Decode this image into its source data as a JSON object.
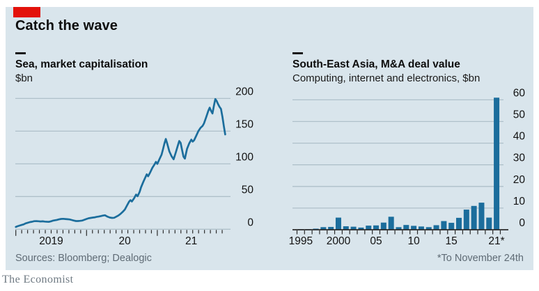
{
  "header": {
    "title": "Catch the wave"
  },
  "footer": {
    "sources": "Sources: Bloomberg; Dealogic",
    "footnote": "*To November 24th",
    "brand": "The Economist"
  },
  "colors": {
    "accent_red": "#E3120B",
    "series_blue": "#1B6D9C",
    "panel_bg": "#D9E5EC",
    "grid": "#AFC0CA",
    "axis_dark": "#2B2B2B",
    "text_dark": "#0D0D0D",
    "text_gray": "#5F6B75"
  },
  "chart_data": [
    {
      "id": "sea-market-cap",
      "type": "line",
      "title": "Sea, market capitalisation",
      "unit_label": "$bn",
      "legend": "single-series dash key",
      "grid": "on",
      "legend_position": "none",
      "ylim": [
        0,
        210
      ],
      "y_ticks": [
        0,
        50,
        100,
        150,
        200
      ],
      "x_axis_labels": [
        {
          "label": "2019",
          "t": 2019.5
        },
        {
          "label": "20",
          "t": 2020.54
        },
        {
          "label": "21",
          "t": 2021.48
        }
      ],
      "x_range_years": [
        2019.0,
        2021.96
      ],
      "points": [
        [
          2019.0,
          3.5
        ],
        [
          2019.02,
          4.5
        ],
        [
          2019.05,
          5.5
        ],
        [
          2019.08,
          6.5
        ],
        [
          2019.11,
          7.5
        ],
        [
          2019.14,
          9
        ],
        [
          2019.17,
          10
        ],
        [
          2019.2,
          11
        ],
        [
          2019.23,
          11.5
        ],
        [
          2019.26,
          12.3
        ],
        [
          2019.29,
          12.5
        ],
        [
          2019.32,
          12.2
        ],
        [
          2019.35,
          11.9
        ],
        [
          2019.38,
          12.1
        ],
        [
          2019.41,
          11.7
        ],
        [
          2019.44,
          11.5
        ],
        [
          2019.47,
          11.4
        ],
        [
          2019.5,
          12.2
        ],
        [
          2019.52,
          13
        ],
        [
          2019.55,
          13.7
        ],
        [
          2019.58,
          14.3
        ],
        [
          2019.61,
          15.1
        ],
        [
          2019.64,
          15.7
        ],
        [
          2019.67,
          16
        ],
        [
          2019.7,
          15.6
        ],
        [
          2019.73,
          15.3
        ],
        [
          2019.76,
          15
        ],
        [
          2019.79,
          14.2
        ],
        [
          2019.82,
          13.3
        ],
        [
          2019.85,
          12.6
        ],
        [
          2019.88,
          12.6
        ],
        [
          2019.91,
          12.9
        ],
        [
          2019.94,
          13.3
        ],
        [
          2019.97,
          14.6
        ],
        [
          2020.0,
          15.8
        ],
        [
          2020.03,
          16.8
        ],
        [
          2020.06,
          17.4
        ],
        [
          2020.09,
          17.9
        ],
        [
          2020.12,
          18.3
        ],
        [
          2020.14,
          18.8
        ],
        [
          2020.17,
          19.4
        ],
        [
          2020.2,
          20.1
        ],
        [
          2020.23,
          20.9
        ],
        [
          2020.26,
          21.4
        ],
        [
          2020.28,
          20.2
        ],
        [
          2020.3,
          19
        ],
        [
          2020.33,
          17.9
        ],
        [
          2020.36,
          17.3
        ],
        [
          2020.39,
          17.6
        ],
        [
          2020.42,
          19.3
        ],
        [
          2020.45,
          21
        ],
        [
          2020.48,
          23.5
        ],
        [
          2020.51,
          26.5
        ],
        [
          2020.54,
          30
        ],
        [
          2020.57,
          36
        ],
        [
          2020.6,
          42
        ],
        [
          2020.62,
          44.5
        ],
        [
          2020.64,
          42.5
        ],
        [
          2020.67,
          47
        ],
        [
          2020.7,
          53
        ],
        [
          2020.72,
          50.5
        ],
        [
          2020.75,
          57
        ],
        [
          2020.77,
          64
        ],
        [
          2020.8,
          72
        ],
        [
          2020.83,
          79
        ],
        [
          2020.85,
          84
        ],
        [
          2020.87,
          81
        ],
        [
          2020.9,
          87
        ],
        [
          2020.93,
          94
        ],
        [
          2020.96,
          99
        ],
        [
          2020.98,
          103
        ],
        [
          2021.0,
          100
        ],
        [
          2021.03,
          107
        ],
        [
          2021.06,
          114
        ],
        [
          2021.08,
          122
        ],
        [
          2021.1,
          131
        ],
        [
          2021.12,
          138
        ],
        [
          2021.14,
          131
        ],
        [
          2021.17,
          119
        ],
        [
          2021.2,
          112
        ],
        [
          2021.23,
          107
        ],
        [
          2021.26,
          117
        ],
        [
          2021.29,
          128
        ],
        [
          2021.31,
          135
        ],
        [
          2021.33,
          132
        ],
        [
          2021.35,
          121
        ],
        [
          2021.37,
          111
        ],
        [
          2021.39,
          108
        ],
        [
          2021.42,
          123
        ],
        [
          2021.45,
          131
        ],
        [
          2021.48,
          137
        ],
        [
          2021.5,
          134
        ],
        [
          2021.52,
          136
        ],
        [
          2021.55,
          143
        ],
        [
          2021.58,
          150
        ],
        [
          2021.61,
          155
        ],
        [
          2021.64,
          158
        ],
        [
          2021.66,
          162
        ],
        [
          2021.69,
          171
        ],
        [
          2021.72,
          181
        ],
        [
          2021.74,
          186
        ],
        [
          2021.76,
          181
        ],
        [
          2021.78,
          177
        ],
        [
          2021.8,
          189
        ],
        [
          2021.82,
          199
        ],
        [
          2021.84,
          196
        ],
        [
          2021.86,
          191
        ],
        [
          2021.88,
          187
        ],
        [
          2021.9,
          184
        ],
        [
          2021.92,
          172
        ],
        [
          2021.94,
          158
        ],
        [
          2021.96,
          145
        ]
      ]
    },
    {
      "id": "sea-ma-deal-value",
      "type": "bar",
      "title": "South-East Asia, M&A deal value",
      "subtitle": "Computing, internet and electronics, $bn",
      "grid": "on",
      "ylim": [
        0,
        61
      ],
      "y_ticks": [
        0,
        10,
        20,
        30,
        40,
        50,
        60
      ],
      "categories": [
        1995,
        1996,
        1997,
        1998,
        1999,
        2000,
        2001,
        2002,
        2003,
        2004,
        2005,
        2006,
        2007,
        2008,
        2009,
        2010,
        2011,
        2012,
        2013,
        2014,
        2015,
        2016,
        2017,
        2018,
        2019,
        2020,
        2021
      ],
      "values": [
        0.15,
        0.25,
        0.5,
        1.2,
        1.3,
        5.6,
        1.6,
        1.4,
        1.0,
        1.9,
        2.0,
        3.3,
        6.0,
        1.2,
        2.2,
        1.8,
        1.5,
        1.2,
        2.1,
        4.0,
        3.2,
        5.5,
        9.3,
        11.0,
        12.5,
        5.6,
        61
      ],
      "x_axis_labels": [
        {
          "label": "1995",
          "year": 1995
        },
        {
          "label": "2000",
          "year": 2000
        },
        {
          "label": "05",
          "year": 2005
        },
        {
          "label": "10",
          "year": 2010
        },
        {
          "label": "15",
          "year": 2015
        },
        {
          "label": "21*",
          "year": 2021
        }
      ]
    }
  ]
}
